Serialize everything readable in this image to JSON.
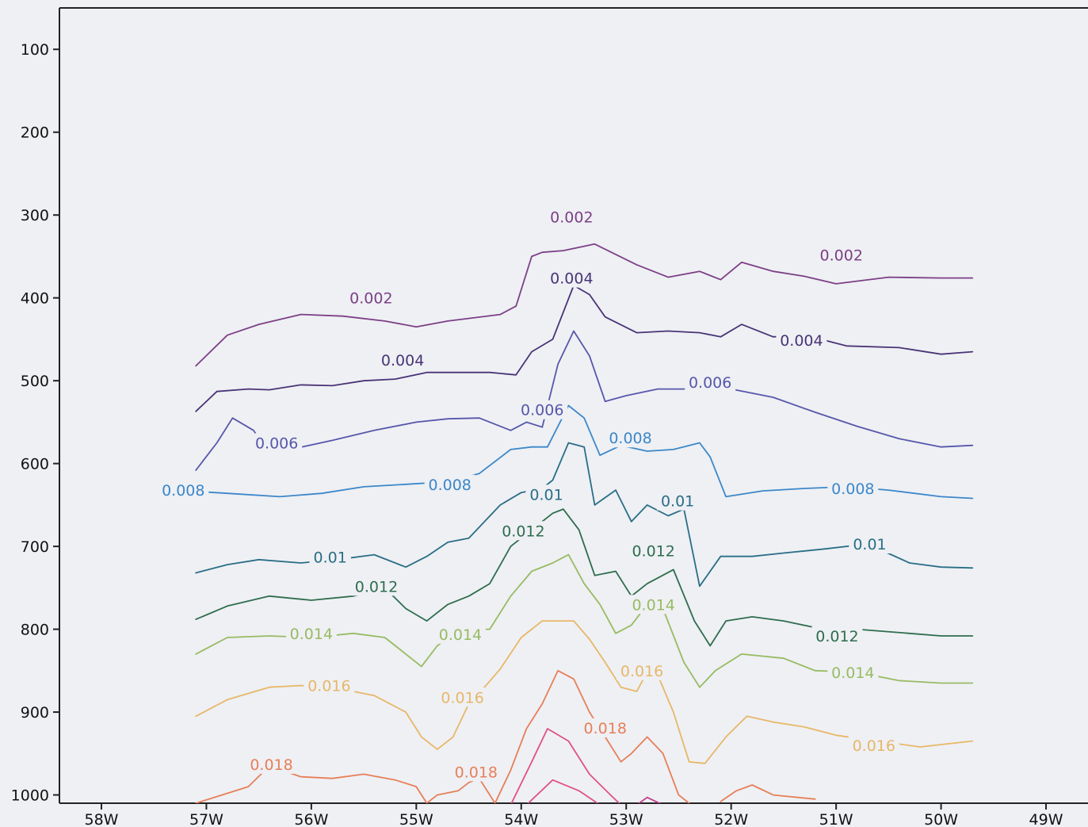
{
  "chart_data": {
    "type": "line",
    "xlim": [
      -58.4,
      -48.6
    ],
    "ylim": [
      50,
      1010
    ],
    "y_reversed": true,
    "x_ticks": [
      {
        "value": -58,
        "label": "58W"
      },
      {
        "value": -57,
        "label": "57W"
      },
      {
        "value": -56,
        "label": "56W"
      },
      {
        "value": -55,
        "label": "55W"
      },
      {
        "value": -54,
        "label": "54W"
      },
      {
        "value": -53,
        "label": "53W"
      },
      {
        "value": -52,
        "label": "52W"
      },
      {
        "value": -51,
        "label": "51W"
      },
      {
        "value": -50,
        "label": "50W"
      },
      {
        "value": -49,
        "label": "49W"
      }
    ],
    "y_ticks": [
      {
        "value": 100,
        "label": "100"
      },
      {
        "value": 200,
        "label": "200"
      },
      {
        "value": 300,
        "label": "300"
      },
      {
        "value": 400,
        "label": "400"
      },
      {
        "value": 500,
        "label": "500"
      },
      {
        "value": 600,
        "label": "600"
      },
      {
        "value": 700,
        "label": "700"
      },
      {
        "value": 800,
        "label": "800"
      },
      {
        "value": 900,
        "label": "900"
      },
      {
        "value": 1000,
        "label": "1000"
      }
    ],
    "grid": false,
    "series": [
      {
        "color": "#7d3f86",
        "x": [
          -57.1,
          -56.8,
          -56.5,
          -56.1,
          -55.7,
          -55.3,
          -55.0,
          -54.7,
          -54.2,
          -54.05,
          -53.9,
          -53.8,
          -53.6,
          -53.3,
          -52.9,
          -52.6,
          -52.3,
          -52.1,
          -51.9,
          -51.6,
          -51.3,
          -51.0,
          -50.5,
          -50.0,
          -49.7
        ],
        "y": [
          482,
          445,
          432,
          420,
          422,
          428,
          435,
          428,
          420,
          410,
          350,
          345,
          343,
          335,
          360,
          375,
          368,
          378,
          357,
          368,
          374,
          383,
          375,
          376,
          376
        ],
        "labels": [
          {
            "x": -55.43,
            "y": 400,
            "text": "0.002"
          },
          {
            "x": -53.52,
            "y": 302,
            "text": "0.002"
          },
          {
            "x": -50.95,
            "y": 348,
            "text": "0.002"
          }
        ]
      },
      {
        "color": "#4a3476",
        "x": [
          -57.1,
          -56.9,
          -56.6,
          -56.4,
          -56.1,
          -55.8,
          -55.5,
          -55.2,
          -54.9,
          -54.6,
          -54.3,
          -54.05,
          -53.9,
          -53.7,
          -53.5,
          -53.35,
          -53.2,
          -52.9,
          -52.6,
          -52.3,
          -52.1,
          -51.9,
          -51.6,
          -51.3,
          -50.9,
          -50.4,
          -50.0,
          -49.7
        ],
        "y": [
          537,
          513,
          510,
          511,
          505,
          506,
          500,
          498,
          490,
          490,
          490,
          493,
          465,
          450,
          385,
          396,
          423,
          442,
          440,
          442,
          447,
          432,
          447,
          445,
          458,
          460,
          468,
          465
        ],
        "labels": [
          {
            "x": -55.13,
            "y": 475,
            "text": "0.004"
          },
          {
            "x": -53.52,
            "y": 376,
            "text": "0.004"
          },
          {
            "x": -51.33,
            "y": 451,
            "text": "0.004"
          }
        ]
      },
      {
        "color": "#5757aa",
        "x": [
          -57.1,
          -56.9,
          -56.75,
          -56.55,
          -56.45,
          -56.2,
          -55.8,
          -55.4,
          -55.0,
          -54.7,
          -54.4,
          -54.1,
          -53.95,
          -53.8,
          -53.65,
          -53.5,
          -53.35,
          -53.2,
          -53.0,
          -52.7,
          -52.4,
          -52.0,
          -51.6,
          -51.2,
          -50.8,
          -50.4,
          -50.0,
          -49.7
        ],
        "y": [
          608,
          575,
          545,
          560,
          580,
          583,
          572,
          560,
          550,
          546,
          545,
          560,
          550,
          556,
          480,
          440,
          470,
          525,
          518,
          510,
          510,
          510,
          520,
          538,
          555,
          570,
          580,
          578
        ],
        "labels": [
          {
            "x": -56.33,
            "y": 575,
            "text": "0.006"
          },
          {
            "x": -53.8,
            "y": 535,
            "text": "0.006"
          },
          {
            "x": -52.2,
            "y": 502,
            "text": "0.006"
          }
        ]
      },
      {
        "color": "#3c87c9",
        "x": [
          -57.3,
          -56.8,
          -56.3,
          -55.9,
          -55.5,
          -55.1,
          -54.7,
          -54.4,
          -54.1,
          -53.9,
          -53.75,
          -53.55,
          -53.4,
          -53.25,
          -53.05,
          -52.8,
          -52.55,
          -52.3,
          -52.2,
          -52.05,
          -51.7,
          -51.3,
          -50.9,
          -50.5,
          -50.0,
          -49.7
        ],
        "y": [
          632,
          636,
          640,
          636,
          628,
          625,
          622,
          612,
          583,
          580,
          580,
          530,
          545,
          590,
          578,
          585,
          583,
          575,
          592,
          640,
          633,
          630,
          628,
          632,
          640,
          642
        ],
        "labels": [
          {
            "x": -57.22,
            "y": 632,
            "text": "0.008"
          },
          {
            "x": -54.68,
            "y": 625,
            "text": "0.008"
          },
          {
            "x": -52.96,
            "y": 569,
            "text": "0.008"
          },
          {
            "x": -50.84,
            "y": 630,
            "text": "0.008"
          }
        ]
      },
      {
        "color": "#2a6e86",
        "x": [
          -57.1,
          -56.8,
          -56.5,
          -56.1,
          -55.7,
          -55.4,
          -55.1,
          -54.9,
          -54.7,
          -54.5,
          -54.2,
          -54.0,
          -53.8,
          -53.7,
          -53.55,
          -53.4,
          -53.3,
          -53.1,
          -52.95,
          -52.8,
          -52.6,
          -52.45,
          -52.3,
          -52.1,
          -51.8,
          -51.5,
          -51.1,
          -50.7,
          -50.3,
          -50.0,
          -49.7
        ],
        "y": [
          732,
          722,
          716,
          720,
          715,
          710,
          725,
          712,
          695,
          690,
          650,
          635,
          630,
          620,
          575,
          580,
          650,
          632,
          670,
          650,
          663,
          655,
          748,
          712,
          712,
          708,
          703,
          697,
          720,
          725,
          726
        ],
        "labels": [
          {
            "x": -55.82,
            "y": 713,
            "text": "0.01"
          },
          {
            "x": -53.76,
            "y": 637,
            "text": "0.01"
          },
          {
            "x": -52.51,
            "y": 645,
            "text": "0.01"
          },
          {
            "x": -50.68,
            "y": 697,
            "text": "0.01"
          }
        ]
      },
      {
        "color": "#2f6d4d",
        "x": [
          -57.1,
          -56.8,
          -56.4,
          -56.0,
          -55.6,
          -55.3,
          -55.1,
          -54.9,
          -54.7,
          -54.5,
          -54.3,
          -54.1,
          -53.9,
          -53.7,
          -53.6,
          -53.45,
          -53.3,
          -53.1,
          -52.95,
          -52.8,
          -52.55,
          -52.35,
          -52.2,
          -52.05,
          -51.8,
          -51.5,
          -51.2,
          -50.8,
          -50.3,
          -50.0,
          -49.7
        ],
        "y": [
          788,
          772,
          760,
          765,
          760,
          750,
          775,
          790,
          770,
          760,
          745,
          700,
          680,
          660,
          655,
          680,
          735,
          730,
          760,
          745,
          728,
          790,
          820,
          790,
          785,
          790,
          798,
          800,
          805,
          808,
          808
        ],
        "labels": [
          {
            "x": -55.38,
            "y": 748,
            "text": "0.012"
          },
          {
            "x": -53.98,
            "y": 681,
            "text": "0.012"
          },
          {
            "x": -52.74,
            "y": 705,
            "text": "0.012"
          },
          {
            "x": -50.99,
            "y": 808,
            "text": "0.012"
          }
        ]
      },
      {
        "color": "#98bb62",
        "x": [
          -57.1,
          -56.8,
          -56.4,
          -56.0,
          -55.6,
          -55.3,
          -55.1,
          -54.95,
          -54.8,
          -54.6,
          -54.3,
          -54.1,
          -53.9,
          -53.7,
          -53.55,
          -53.4,
          -53.25,
          -53.1,
          -52.95,
          -52.8,
          -52.65,
          -52.45,
          -52.3,
          -52.15,
          -51.9,
          -51.5,
          -51.2,
          -50.8,
          -50.4,
          -50.0,
          -49.7
        ],
        "y": [
          830,
          810,
          808,
          810,
          805,
          810,
          830,
          845,
          820,
          800,
          800,
          760,
          730,
          720,
          710,
          745,
          770,
          805,
          795,
          770,
          775,
          840,
          870,
          850,
          830,
          835,
          850,
          852,
          862,
          865,
          865
        ],
        "labels": [
          {
            "x": -56.0,
            "y": 805,
            "text": "0.014"
          },
          {
            "x": -54.58,
            "y": 806,
            "text": "0.014"
          },
          {
            "x": -52.74,
            "y": 770,
            "text": "0.014"
          },
          {
            "x": -50.84,
            "y": 852,
            "text": "0.014"
          }
        ]
      },
      {
        "color": "#e8b768",
        "x": [
          -57.1,
          -56.8,
          -56.4,
          -56.1,
          -55.8,
          -55.4,
          -55.1,
          -54.95,
          -54.8,
          -54.65,
          -54.5,
          -54.35,
          -54.2,
          -54.0,
          -53.8,
          -53.65,
          -53.5,
          -53.35,
          -53.2,
          -53.05,
          -52.9,
          -52.75,
          -52.55,
          -52.4,
          -52.25,
          -52.05,
          -51.85,
          -51.6,
          -51.3,
          -51.0,
          -50.6,
          -50.2,
          -49.7
        ],
        "y": [
          905,
          885,
          870,
          868,
          870,
          880,
          900,
          930,
          945,
          930,
          890,
          870,
          848,
          810,
          790,
          790,
          790,
          812,
          840,
          870,
          875,
          840,
          900,
          960,
          962,
          930,
          905,
          912,
          918,
          928,
          935,
          942,
          935
        ],
        "labels": [
          {
            "x": -55.83,
            "y": 868,
            "text": "0.016"
          },
          {
            "x": -54.56,
            "y": 882,
            "text": "0.016"
          },
          {
            "x": -52.85,
            "y": 850,
            "text": "0.016"
          },
          {
            "x": -50.64,
            "y": 940,
            "text": "0.016"
          }
        ]
      },
      {
        "color": "#e77f59",
        "x": [
          -57.1,
          -56.8,
          -56.6,
          -56.4,
          -56.1,
          -55.8,
          -55.5,
          -55.2,
          -55.0,
          -54.9,
          -54.8,
          -54.6,
          -54.5,
          -54.4,
          -54.25,
          -54.1,
          -53.95,
          -53.8,
          -53.65,
          -53.5,
          -53.35,
          -53.2,
          -53.05,
          -52.95,
          -52.8,
          -52.65,
          -52.5,
          -52.4
        ],
        "y": [
          1010,
          998,
          990,
          965,
          978,
          980,
          975,
          982,
          990,
          1010,
          1000,
          995,
          985,
          980,
          1010,
          970,
          920,
          890,
          850,
          860,
          900,
          930,
          960,
          950,
          930,
          950,
          1000,
          1010
        ],
        "labels": [
          {
            "x": -56.38,
            "y": 963,
            "text": "0.018"
          },
          {
            "x": -54.43,
            "y": 972,
            "text": "0.018"
          },
          {
            "x": -53.2,
            "y": 919,
            "text": "0.018"
          }
        ]
      },
      {
        "color": "#e77f59",
        "x": [
          -52.1,
          -51.95,
          -51.8,
          -51.6,
          -51.2
        ],
        "y": [
          1008,
          995,
          988,
          1000,
          1005
        ],
        "labels": []
      },
      {
        "color": "#e0527f",
        "x": [
          -54.1,
          -53.9,
          -53.75,
          -53.55,
          -53.35,
          -53.15,
          -53.05
        ],
        "y": [
          1012,
          960,
          920,
          935,
          975,
          1000,
          1012
        ],
        "labels": []
      },
      {
        "color": "#e0527f",
        "x": [
          -53.95,
          -53.7,
          -53.45,
          -53.25
        ],
        "y": [
          1012,
          982,
          995,
          1012
        ],
        "labels": []
      },
      {
        "color": "#c23c8a",
        "x": [
          -52.9,
          -52.8,
          -52.65
        ],
        "y": [
          1012,
          1003,
          1012
        ],
        "labels": []
      }
    ]
  }
}
